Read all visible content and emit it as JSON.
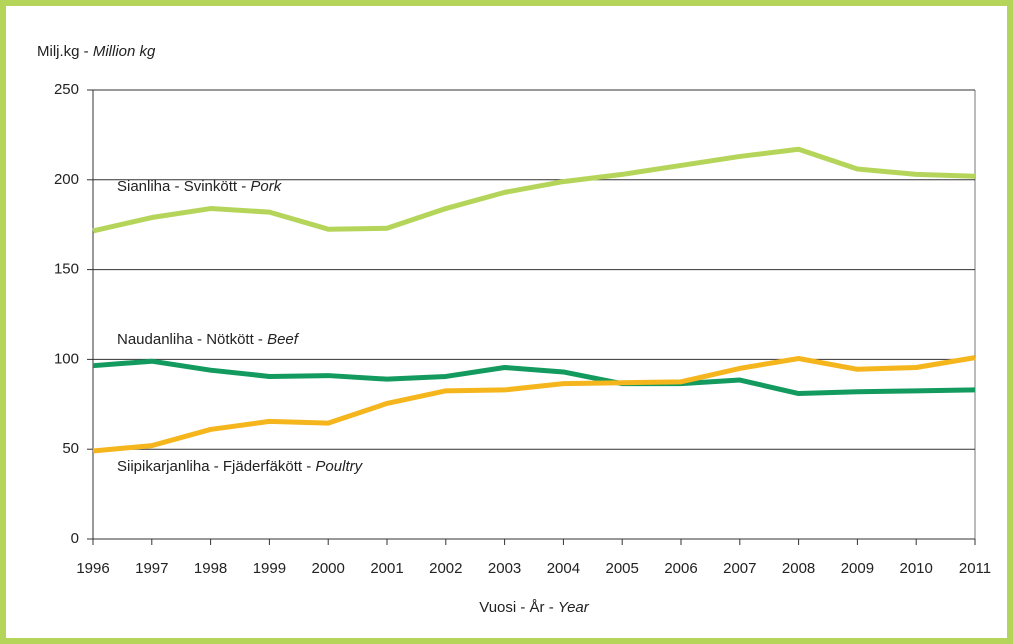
{
  "chart_data": {
    "type": "line",
    "ylabel": [
      "Milj.kg -",
      "Million kg"
    ],
    "xlabel": [
      "Vuosi - År -",
      "Year"
    ],
    "categories": [
      "1996",
      "1997",
      "1998",
      "1999",
      "2000",
      "2001",
      "2002",
      "2003",
      "2004",
      "2005",
      "2006",
      "2007",
      "2008",
      "2009",
      "2010",
      "2011"
    ],
    "series": [
      {
        "label": [
          "Sianliha - Svinkött -",
          "Pork"
        ],
        "color": "#b5d55a",
        "values": [
          171.5,
          179,
          184,
          182,
          172.5,
          173,
          184,
          193,
          199,
          203,
          208,
          213,
          217,
          206,
          203,
          202
        ]
      },
      {
        "label": [
          "Naudanliha - Nötkött -",
          "Beef"
        ],
        "color": "#139a5e",
        "values": [
          96.5,
          99,
          94,
          90.5,
          91,
          89,
          90.5,
          95.5,
          93,
          86.5,
          86.5,
          88.5,
          81,
          82,
          82.5,
          83
        ]
      },
      {
        "label": [
          "Siipikarjanliha - Fjäderfäkött -",
          "Poultry"
        ],
        "color": "#f5b51c",
        "values": [
          49,
          52,
          61,
          65.5,
          64.5,
          75.5,
          82.5,
          83,
          86.5,
          87,
          87.5,
          95,
          100.5,
          94.5,
          95.5,
          101
        ]
      }
    ],
    "ylim": [
      0,
      250
    ],
    "yticks": [
      0,
      50,
      100,
      150,
      200,
      250
    ],
    "grid": true
  }
}
